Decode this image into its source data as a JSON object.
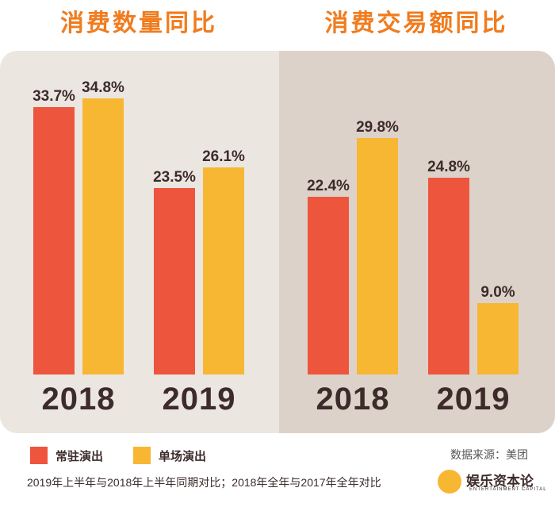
{
  "titles": {
    "left": "消费数量同比",
    "right": "消费交易额同比"
  },
  "colors": {
    "title": "#f07c1f",
    "bar_resident": "#ee553d",
    "bar_single": "#f7b733",
    "panel_left": "#ece6e0",
    "panel_right": "#ddd2c9",
    "text": "#3d2b2b"
  },
  "chart_data": [
    {
      "type": "bar",
      "title": "消费数量同比",
      "categories": [
        "2018",
        "2019"
      ],
      "series": [
        {
          "name": "常驻演出",
          "values": [
            33.7,
            23.5
          ],
          "labels": [
            "33.7%",
            "23.5%"
          ]
        },
        {
          "name": "单场演出",
          "values": [
            34.8,
            26.1
          ],
          "labels": [
            "34.8%",
            "26.1%"
          ]
        }
      ],
      "ylim": [
        0,
        40
      ]
    },
    {
      "type": "bar",
      "title": "消费交易额同比",
      "categories": [
        "2018",
        "2019"
      ],
      "series": [
        {
          "name": "常驻演出",
          "values": [
            22.4,
            24.8
          ],
          "labels": [
            "22.4%",
            "24.8%"
          ]
        },
        {
          "name": "单场演出",
          "values": [
            29.8,
            9.0
          ],
          "labels": [
            "29.8%",
            "9.0%"
          ]
        }
      ],
      "ylim": [
        0,
        40
      ]
    }
  ],
  "legend": {
    "resident": "常驻演出",
    "single": "单场演出"
  },
  "source": "数据来源：美团",
  "footnote": "2019年上半年与2018年上半年同期对比；2018年全年与2017年全年对比",
  "logo": {
    "name": "娱乐资本论",
    "sub": "ENTERTAINMENT CAPITAL"
  }
}
